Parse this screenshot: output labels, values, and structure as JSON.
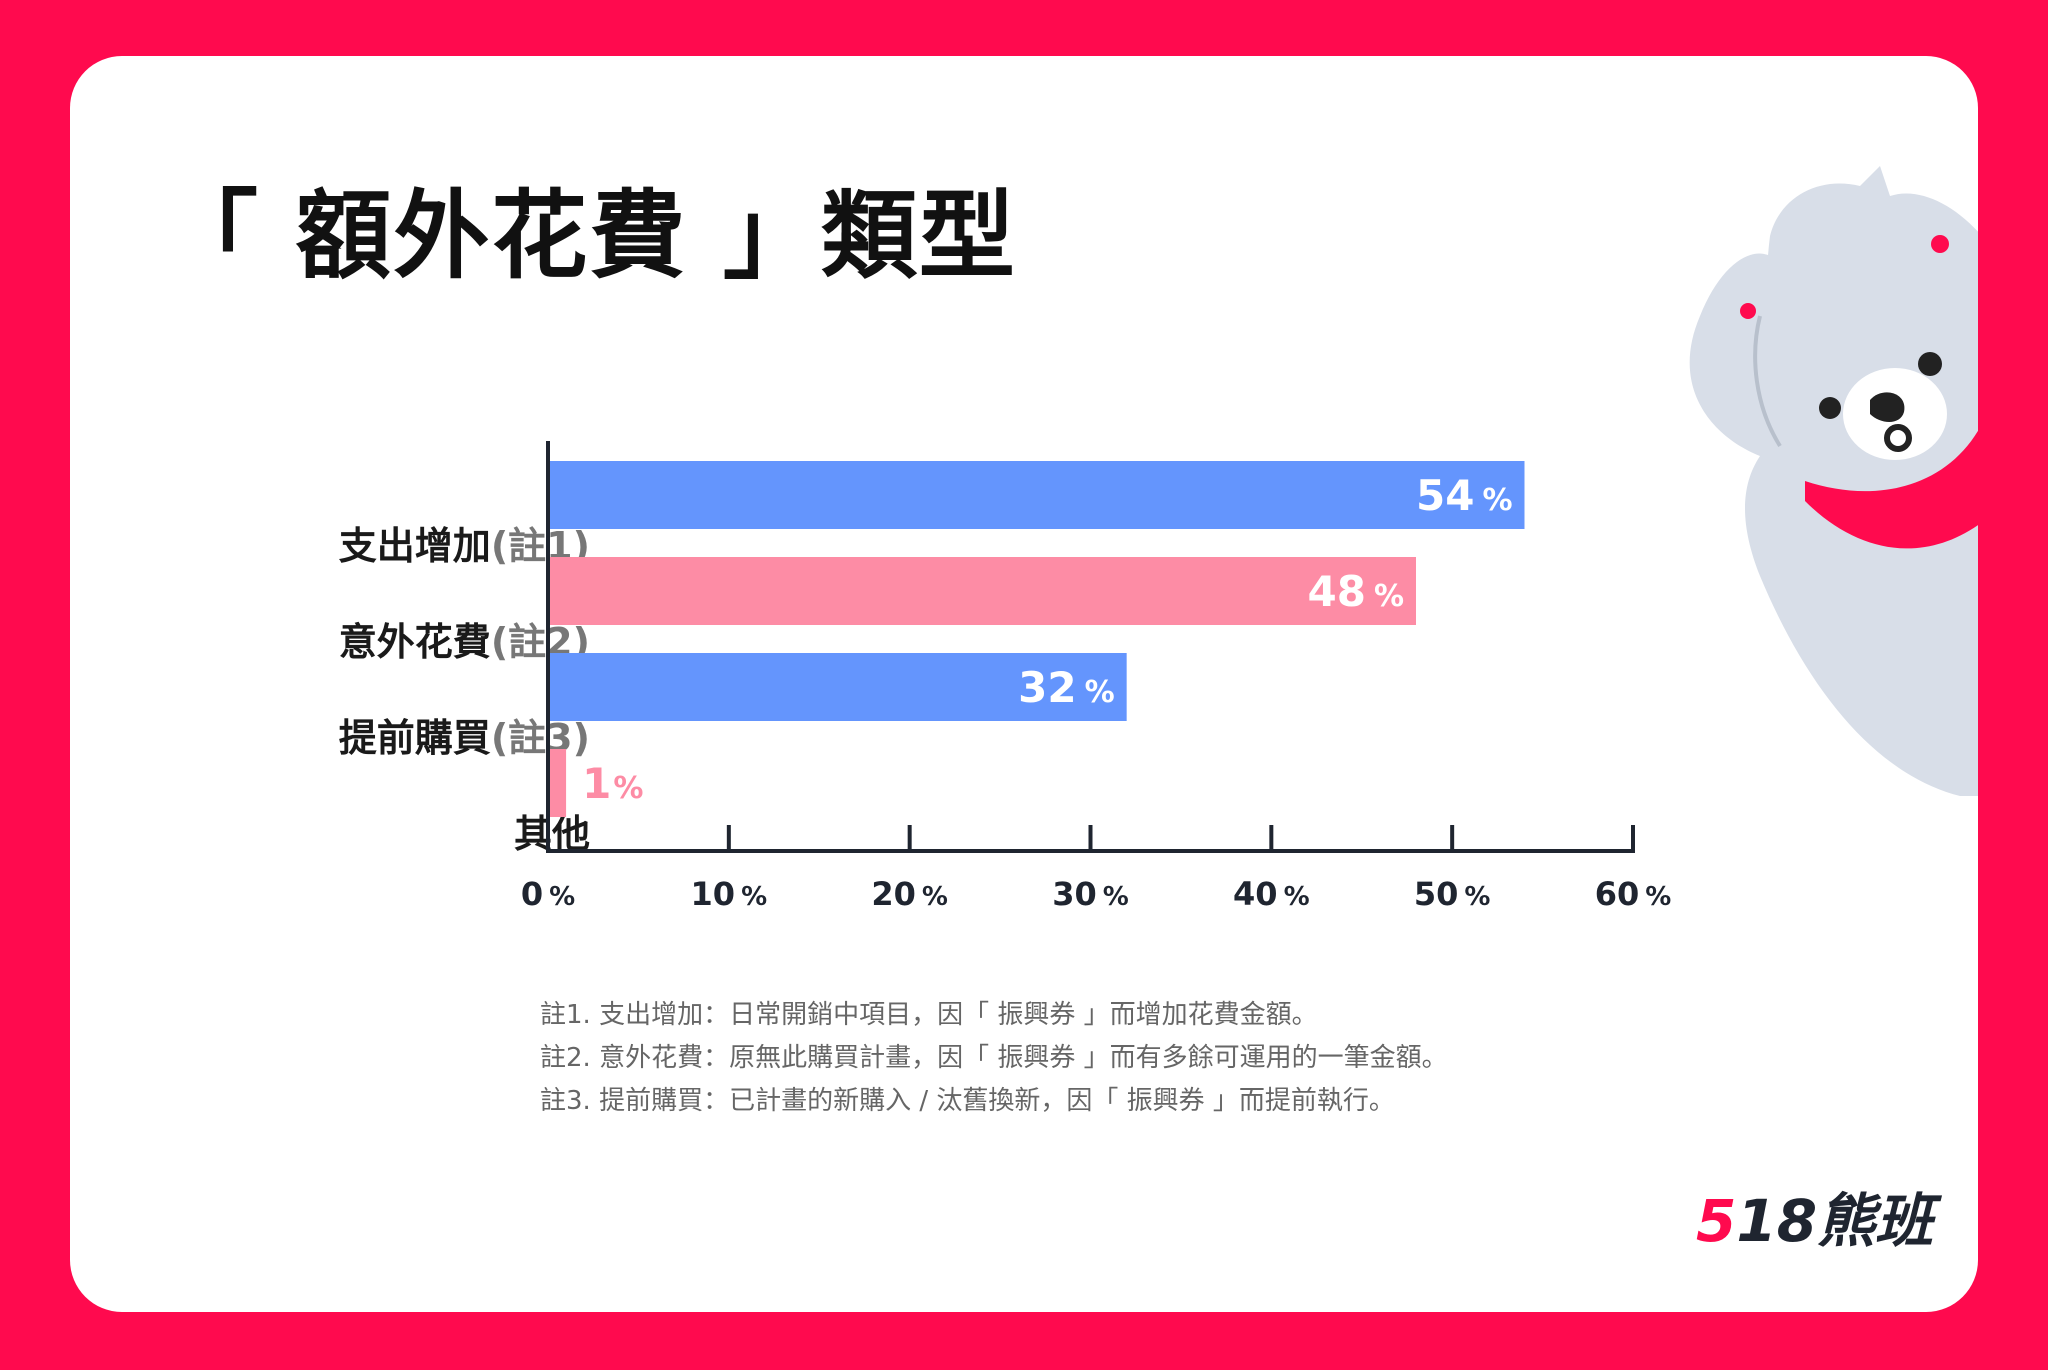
{
  "title": "「 額外花費 」類型",
  "colors": {
    "frame": "#ff0a4e",
    "blue_bar": "#6495fd",
    "pink_bar": "#fd8ca5",
    "bear": "#d8dee8",
    "bear_scarf": "#ff0a4e"
  },
  "chart_data": {
    "type": "bar",
    "orientation": "horizontal",
    "categories": [
      {
        "label": "支出增加",
        "note": "(註1)"
      },
      {
        "label": "意外花費",
        "note": "(註2)"
      },
      {
        "label": "提前購買",
        "note": "(註3)"
      },
      {
        "label": "其他",
        "note": ""
      }
    ],
    "values": [
      54,
      48,
      32,
      1
    ],
    "value_labels": [
      "54",
      "48",
      "32",
      "1"
    ],
    "value_unit": "%",
    "bar_colors": [
      "#6495fd",
      "#fd8ca5",
      "#6495fd",
      "#fd8ca5"
    ],
    "xlim": [
      0,
      60
    ],
    "xticks": [
      0,
      10,
      20,
      30,
      40,
      50,
      60
    ],
    "xtick_unit": "%",
    "grid": false
  },
  "footnotes": [
    "註1. 支出增加：日常開銷中項目，因「 振興券 」而增加花費金額。",
    "註2. 意外花費：原無此購買計畫，因「 振興券 」而有多餘可運用的一筆金額。",
    "註3. 提前購買：已計畫的新購入 / 汰舊換新，因「 振興券 」而提前執行。"
  ],
  "logo": {
    "digit_5": "5",
    "rest": "18熊班"
  }
}
